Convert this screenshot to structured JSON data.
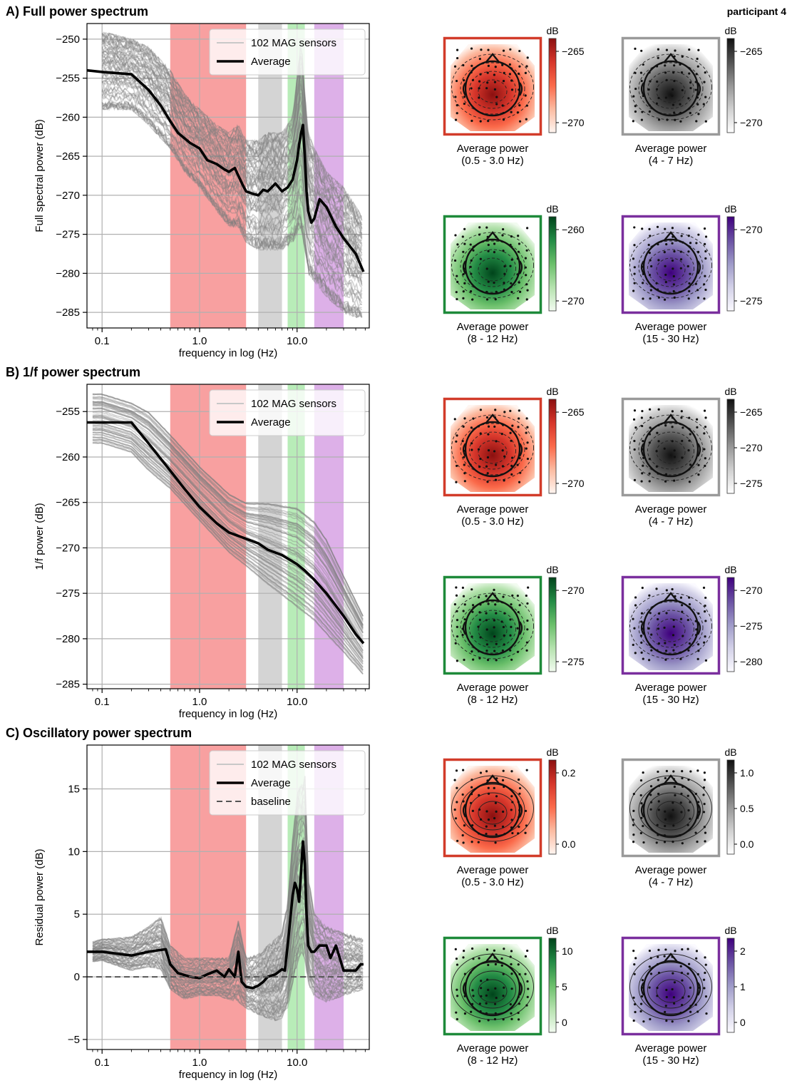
{
  "participant": "participant 4",
  "panels": [
    {
      "id": "A",
      "title": "A) Full power spectrum",
      "ylabel": "Full spectral power (dB)",
      "xlabel": "frequency in log (Hz)",
      "legend": [
        "102 MAG sensors",
        "Average"
      ],
      "topo_unit": "dB",
      "topos": [
        {
          "caption_line1": "Average power",
          "caption_line2": "(0.5 - 3.0 Hz)",
          "color": "#d23c2a",
          "colorbar_ticks": [
            "−265",
            "−270"
          ]
        },
        {
          "caption_line1": "Average power",
          "caption_line2": "(4 - 7 Hz)",
          "color": "#9a9a9a",
          "colorbar_ticks": [
            "−265",
            "−270"
          ]
        },
        {
          "caption_line1": "Average power",
          "caption_line2": "(8 - 12 Hz)",
          "color": "#1e8a3a",
          "colorbar_ticks": [
            "−260",
            "−270"
          ]
        },
        {
          "caption_line1": "Average power",
          "caption_line2": "(15 - 30 Hz)",
          "color": "#7a2f9e",
          "colorbar_ticks": [
            "−270",
            "−275"
          ]
        }
      ]
    },
    {
      "id": "B",
      "title": "B) 1/f power spectrum",
      "ylabel": "1/f power (dB)",
      "xlabel": "frequency in log (Hz)",
      "legend": [
        "102 MAG sensors",
        "Average"
      ],
      "topo_unit": "dB",
      "topos": [
        {
          "caption_line1": "Average power",
          "caption_line2": "(0.5 - 3.0 Hz)",
          "color": "#d23c2a",
          "colorbar_ticks": [
            "−265",
            "−270"
          ]
        },
        {
          "caption_line1": "Average power",
          "caption_line2": "(4 - 7 Hz)",
          "color": "#9a9a9a",
          "colorbar_ticks": [
            "−265",
            "−270",
            "−275"
          ]
        },
        {
          "caption_line1": "Average power",
          "caption_line2": "(8 - 12 Hz)",
          "color": "#1e8a3a",
          "colorbar_ticks": [
            "−270",
            "−275"
          ]
        },
        {
          "caption_line1": "Average power",
          "caption_line2": "(15 - 30 Hz)",
          "color": "#7a2f9e",
          "colorbar_ticks": [
            "−270",
            "−275",
            "−280"
          ]
        }
      ]
    },
    {
      "id": "C",
      "title": "C) Oscillatory power spectrum",
      "ylabel": "Residual power (dB)",
      "xlabel": "frequency in log (Hz)",
      "legend": [
        "102 MAG sensors",
        "Average",
        "baseline"
      ],
      "topo_unit": "dB",
      "topos": [
        {
          "caption_line1": "Average power",
          "caption_line2": "(0.5 - 3.0 Hz)",
          "color": "#d23c2a",
          "colorbar_ticks": [
            "0.2",
            "0.0"
          ]
        },
        {
          "caption_line1": "Average power",
          "caption_line2": "(4 - 7 Hz)",
          "color": "#9a9a9a",
          "colorbar_ticks": [
            "1.0",
            "0.5",
            "0.0"
          ]
        },
        {
          "caption_line1": "Average power",
          "caption_line2": "(8 - 12 Hz)",
          "color": "#1e8a3a",
          "colorbar_ticks": [
            "10",
            "5",
            "0"
          ]
        },
        {
          "caption_line1": "Average power",
          "caption_line2": "(15 - 30 Hz)",
          "color": "#7a2f9e",
          "colorbar_ticks": [
            "2",
            "1",
            "0"
          ]
        }
      ]
    }
  ],
  "chart_data": [
    {
      "type": "line",
      "title": "A) Full power spectrum",
      "xlabel": "frequency in log (Hz)",
      "ylabel": "Full spectral power (dB)",
      "x_scale": "log",
      "xlim": [
        0.07,
        55
      ],
      "ylim": [
        -287,
        -248
      ],
      "xticks": [
        0.1,
        1.0,
        10.0
      ],
      "xtick_labels": [
        "0.1",
        "1.0",
        "10.0"
      ],
      "yticks": [
        -250,
        -255,
        -260,
        -265,
        -270,
        -275,
        -280,
        -285
      ],
      "ytick_labels": [
        "−250",
        "−255",
        "−260",
        "−265",
        "−270",
        "−275",
        "−280",
        "−285"
      ],
      "grid": true,
      "legend_position": "top-right",
      "bands": [
        {
          "range": [
            0.5,
            3.0
          ],
          "color": "#f8a0a0"
        },
        {
          "range": [
            4,
            7
          ],
          "color": "#d4d4d4"
        },
        {
          "range": [
            8,
            12
          ],
          "color": "#b8ecb8"
        },
        {
          "range": [
            15,
            30
          ],
          "color": "#ddb0e8"
        }
      ],
      "sensor_band": {
        "x": [
          0.1,
          0.2,
          0.3,
          0.5,
          0.7,
          1.0,
          1.5,
          2.0,
          2.5,
          3.0,
          4.0,
          5.0,
          7.0,
          9.0,
          10.0,
          11.0,
          12.0,
          13.0,
          15.0,
          20.0,
          30.0,
          48.0
        ],
        "upper": [
          -249,
          -250,
          -251,
          -254,
          -257,
          -259,
          -261,
          -262,
          -261,
          -263,
          -263,
          -262,
          -262,
          -260,
          -255,
          -250,
          -257,
          -262,
          -264,
          -267,
          -269,
          -273
        ],
        "lower": [
          -259,
          -259,
          -261,
          -264,
          -267,
          -269,
          -272,
          -274,
          -274,
          -276,
          -277,
          -277,
          -277,
          -276,
          -275,
          -274,
          -277,
          -280,
          -281,
          -283,
          -285,
          -286
        ]
      },
      "series": [
        {
          "name": "Average",
          "x": [
            0.07,
            0.1,
            0.2,
            0.3,
            0.4,
            0.5,
            0.6,
            0.8,
            1.0,
            1.2,
            1.5,
            1.8,
            2.0,
            2.3,
            2.5,
            2.8,
            3.0,
            3.5,
            4.0,
            4.5,
            5.0,
            6.0,
            7.0,
            8.0,
            9.0,
            10.0,
            10.5,
            11.0,
            11.5,
            12.0,
            12.5,
            13.0,
            14.0,
            15.0,
            17.0,
            20.0,
            25.0,
            30.0,
            40.0,
            48.0
          ],
          "y": [
            -254,
            -254.2,
            -254.5,
            -256.5,
            -258.5,
            -260.5,
            -262,
            -263.3,
            -264,
            -265.5,
            -266,
            -266.7,
            -267,
            -266.5,
            -267.5,
            -268.8,
            -269.5,
            -269.8,
            -270,
            -269.3,
            -269.5,
            -268.5,
            -269.5,
            -269,
            -268,
            -265.5,
            -263.5,
            -262,
            -261,
            -265,
            -269.5,
            -272,
            -273.5,
            -273,
            -270.5,
            -271.5,
            -274,
            -275.5,
            -277.5,
            -279.8
          ]
        }
      ]
    },
    {
      "type": "line",
      "title": "B) 1/f power spectrum",
      "xlabel": "frequency in log (Hz)",
      "ylabel": "1/f power (dB)",
      "x_scale": "log",
      "xlim": [
        0.07,
        55
      ],
      "ylim": [
        -285.5,
        -252
      ],
      "xticks": [
        0.1,
        1.0,
        10.0
      ],
      "xtick_labels": [
        "0.1",
        "1.0",
        "10.0"
      ],
      "yticks": [
        -255,
        -260,
        -265,
        -270,
        -275,
        -280,
        -285
      ],
      "ytick_labels": [
        "−255",
        "−260",
        "−265",
        "−270",
        "−275",
        "−280",
        "−285"
      ],
      "grid": true,
      "legend_position": "top-right",
      "bands": [
        {
          "range": [
            0.5,
            3.0
          ],
          "color": "#f8a0a0"
        },
        {
          "range": [
            4,
            7
          ],
          "color": "#d4d4d4"
        },
        {
          "range": [
            8,
            12
          ],
          "color": "#b8ecb8"
        },
        {
          "range": [
            15,
            30
          ],
          "color": "#ddb0e8"
        }
      ],
      "sensor_band": {
        "x": [
          0.08,
          0.1,
          0.2,
          0.3,
          0.5,
          1.0,
          2.0,
          3.0,
          5.0,
          10.0,
          15.0,
          20.0,
          30.0,
          48.0
        ],
        "upper": [
          -253,
          -253,
          -254,
          -255,
          -257.5,
          -261,
          -264,
          -265,
          -265,
          -265.5,
          -267,
          -269,
          -273,
          -277.5
        ],
        "lower": [
          -258.5,
          -258.5,
          -259.5,
          -261.5,
          -263.5,
          -267,
          -270.5,
          -272,
          -274,
          -276.5,
          -278,
          -279.5,
          -281.5,
          -284
        ]
      },
      "series": [
        {
          "name": "Average",
          "x": [
            0.07,
            0.1,
            0.2,
            0.3,
            0.5,
            0.7,
            1.0,
            1.5,
            2.0,
            3.0,
            4.0,
            5.0,
            7.0,
            9.0,
            10.0,
            12.0,
            15.0,
            20.0,
            30.0,
            40.0,
            48.0
          ],
          "y": [
            -256.2,
            -256.2,
            -256.2,
            -258.5,
            -261.5,
            -263.5,
            -265.5,
            -267.3,
            -268.3,
            -269,
            -269.5,
            -270.2,
            -270.8,
            -271.5,
            -271.8,
            -272.5,
            -273.5,
            -275,
            -277.5,
            -279.5,
            -280.5
          ]
        }
      ]
    },
    {
      "type": "line",
      "title": "C) Oscillatory power spectrum",
      "xlabel": "frequency in log (Hz)",
      "ylabel": "Residual power (dB)",
      "x_scale": "log",
      "xlim": [
        0.07,
        55
      ],
      "ylim": [
        -5.8,
        18.5
      ],
      "xticks": [
        0.1,
        1.0,
        10.0
      ],
      "xtick_labels": [
        "0.1",
        "1.0",
        "10.0"
      ],
      "yticks": [
        15,
        10,
        5,
        0,
        -5
      ],
      "ytick_labels": [
        "15",
        "10",
        "5",
        "0",
        "−5"
      ],
      "grid": true,
      "legend_position": "top-right",
      "bands": [
        {
          "range": [
            0.5,
            3.0
          ],
          "color": "#f8a0a0"
        },
        {
          "range": [
            4,
            7
          ],
          "color": "#d4d4d4"
        },
        {
          "range": [
            8,
            12
          ],
          "color": "#b8ecb8"
        },
        {
          "range": [
            15,
            30
          ],
          "color": "#ddb0e8"
        }
      ],
      "sensor_band": {
        "x": [
          0.08,
          0.1,
          0.2,
          0.3,
          0.4,
          0.5,
          0.7,
          1.0,
          1.5,
          2.0,
          2.5,
          3.0,
          4.0,
          5.0,
          6.0,
          7.0,
          8.0,
          9.0,
          10.0,
          11.0,
          12.0,
          13.0,
          15.0,
          20.0,
          30.0,
          48.0
        ],
        "upper": [
          2.8,
          3.0,
          3.2,
          4.0,
          4.8,
          2.5,
          1.5,
          1.5,
          1.5,
          1.5,
          4.5,
          1.5,
          1.8,
          2.5,
          3.0,
          3.5,
          6.0,
          11.0,
          14.5,
          15.5,
          16.5,
          8.0,
          5.0,
          4.0,
          3.5,
          3.0
        ],
        "lower": [
          1.2,
          1.3,
          0.5,
          0.8,
          0.6,
          -1.0,
          -1.8,
          -1.5,
          -1.5,
          -1.8,
          -2.0,
          -2.5,
          -3.0,
          -3.3,
          -3.5,
          -3.3,
          -2.5,
          -0.5,
          1.0,
          2.0,
          1.5,
          -0.5,
          -1.5,
          -2.0,
          -1.5,
          -1.0
        ]
      },
      "series": [
        {
          "name": "Average",
          "x": [
            0.07,
            0.1,
            0.2,
            0.3,
            0.45,
            0.5,
            0.6,
            0.8,
            1.0,
            1.2,
            1.5,
            1.8,
            2.0,
            2.3,
            2.5,
            2.7,
            3.0,
            3.5,
            4.0,
            4.5,
            5.0,
            6.0,
            7.0,
            7.5,
            8.0,
            8.5,
            9.0,
            9.5,
            10.0,
            10.5,
            11.0,
            11.5,
            12.0,
            12.5,
            13.0,
            14.0,
            15.0,
            17.0,
            20.0,
            22.0,
            25.0,
            30.0,
            35.0,
            40.0,
            45.0,
            48.0
          ],
          "y": [
            2.0,
            2.0,
            1.7,
            2.0,
            2.2,
            1.0,
            0.3,
            0.0,
            -0.1,
            0.2,
            0.5,
            0.0,
            0.6,
            0.0,
            2.0,
            -0.4,
            -0.8,
            -0.9,
            -0.7,
            -0.4,
            0.0,
            0.2,
            0.6,
            0.5,
            2.5,
            4.5,
            6.5,
            7.5,
            7.0,
            6.0,
            8.5,
            10.8,
            9.0,
            5.0,
            2.5,
            2.0,
            2.0,
            2.5,
            2.5,
            1.5,
            2.5,
            0.5,
            0.5,
            0.5,
            1.0,
            1.0
          ]
        },
        {
          "name": "baseline",
          "x": [
            0.07,
            48.0
          ],
          "y": [
            0,
            0
          ]
        }
      ]
    }
  ]
}
